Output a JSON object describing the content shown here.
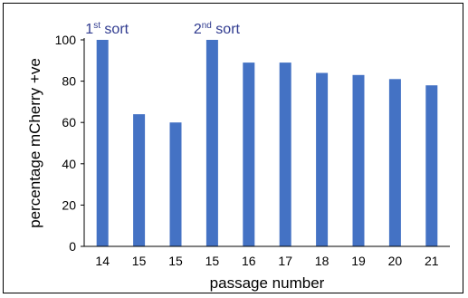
{
  "chart_data": {
    "type": "bar",
    "categories": [
      "14",
      "15",
      "15",
      "15",
      "16",
      "17",
      "18",
      "19",
      "20",
      "21"
    ],
    "values": [
      100,
      64,
      60,
      100,
      89,
      89,
      84,
      83,
      81,
      78
    ],
    "xlabel": "passage number",
    "ylabel": "percentage mCherry +ve",
    "ylim": [
      0,
      100
    ],
    "yticks": [
      0,
      20,
      40,
      60,
      80,
      100
    ],
    "grid": false,
    "legend": "none",
    "bar_color": "#4472c4",
    "annotations": [
      {
        "category_index": 0,
        "main": "1",
        "sup": "st",
        "rest": " sort"
      },
      {
        "category_index": 3,
        "main": "2",
        "sup": "nd",
        "rest": " sort"
      }
    ],
    "annotation_color": "#2f3a8f"
  }
}
